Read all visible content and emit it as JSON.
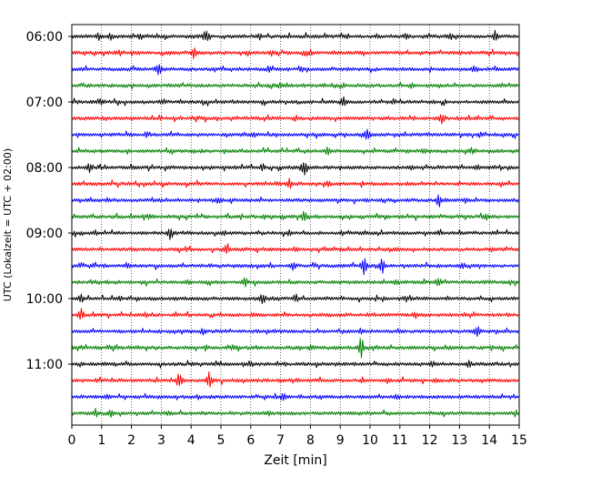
{
  "chart_data": {
    "type": "line",
    "title": "",
    "xlabel": "Zeit  [min]",
    "ylabel": "UTC (Lokalzeit = UTC + 02:00)",
    "xlim": [
      0,
      15
    ],
    "x_ticks": [
      "0",
      "1",
      "2",
      "3",
      "4",
      "5",
      "6",
      "7",
      "8",
      "9",
      "10",
      "11",
      "12",
      "13",
      "14",
      "15"
    ],
    "y_ticks": [
      {
        "label": "06:00",
        "trace": 0
      },
      {
        "label": "07:00",
        "trace": 4
      },
      {
        "label": "08:00",
        "trace": 8
      },
      {
        "label": "09:00",
        "trace": 12
      },
      {
        "label": "10:00",
        "trace": 16
      },
      {
        "label": "11:00",
        "trace": 20
      }
    ],
    "trace_start_times": [
      "06:00",
      "06:15",
      "06:30",
      "06:45",
      "07:00",
      "07:15",
      "07:30",
      "07:45",
      "08:00",
      "08:15",
      "08:30",
      "08:45",
      "09:00",
      "09:15",
      "09:30",
      "09:45",
      "10:00",
      "10:15",
      "10:30",
      "10:45",
      "11:00",
      "11:15",
      "11:30",
      "11:45"
    ],
    "colors": [
      "#000000",
      "#ff0000",
      "#0000ff",
      "#008000"
    ],
    "grid": "vertical dotted",
    "trace_count": 24,
    "events": [
      [
        [
          4.5,
          7
        ],
        [
          14.2,
          6
        ],
        [
          0.9,
          4
        ],
        [
          1.3,
          4
        ],
        [
          2.3,
          3
        ],
        [
          6.3,
          4
        ],
        [
          11.2,
          3
        ],
        [
          12.7,
          3
        ]
      ],
      [
        [
          4.1,
          6
        ],
        [
          1.5,
          3
        ],
        [
          6.7,
          3
        ],
        [
          8.0,
          3
        ]
      ],
      [
        [
          2.9,
          9
        ],
        [
          6.6,
          3
        ],
        [
          7.7,
          3
        ],
        [
          13.5,
          3
        ]
      ],
      [
        [
          7.0,
          3
        ],
        [
          11.4,
          3
        ]
      ],
      [
        [
          9.1,
          6
        ],
        [
          1.0,
          4
        ],
        [
          3.1,
          3
        ],
        [
          10.8,
          3
        ]
      ],
      [
        [
          12.4,
          7
        ],
        [
          7.5,
          3
        ]
      ],
      [
        [
          9.9,
          6
        ],
        [
          6.1,
          3
        ],
        [
          13.7,
          3
        ]
      ],
      [
        [
          8.6,
          5
        ],
        [
          11.8,
          3
        ],
        [
          13.4,
          3
        ]
      ],
      [
        [
          0.6,
          6
        ],
        [
          7.8,
          10
        ],
        [
          6.4,
          4
        ],
        [
          11.4,
          3
        ],
        [
          13.6,
          3
        ]
      ],
      [
        [
          7.3,
          6
        ],
        [
          8.6,
          3
        ],
        [
          14.4,
          3
        ]
      ],
      [
        [
          12.3,
          8
        ],
        [
          4.9,
          3
        ],
        [
          13.2,
          3
        ]
      ],
      [
        [
          7.8,
          6
        ],
        [
          2.6,
          3
        ],
        [
          13.9,
          3
        ]
      ],
      [
        [
          3.3,
          8
        ],
        [
          5.1,
          3
        ],
        [
          7.3,
          3
        ],
        [
          12.3,
          3
        ]
      ],
      [
        [
          5.2,
          7
        ],
        [
          7.5,
          3
        ],
        [
          14.1,
          3
        ]
      ],
      [
        [
          9.8,
          11
        ],
        [
          10.4,
          9
        ],
        [
          7.4,
          5
        ],
        [
          1.9,
          3
        ],
        [
          13.1,
          3
        ]
      ],
      [
        [
          5.8,
          6
        ],
        [
          12.3,
          6
        ],
        [
          3.9,
          3
        ],
        [
          10.9,
          3
        ]
      ],
      [
        [
          0.3,
          5
        ],
        [
          6.4,
          6
        ],
        [
          7.5,
          5
        ],
        [
          1.6,
          3
        ],
        [
          11.2,
          3
        ]
      ],
      [
        [
          0.3,
          8
        ],
        [
          11.5,
          4
        ],
        [
          2.5,
          3
        ],
        [
          6.1,
          3
        ]
      ],
      [
        [
          13.6,
          6
        ],
        [
          9.7,
          3
        ],
        [
          4.4,
          3
        ]
      ],
      [
        [
          9.7,
          12
        ],
        [
          8.0,
          3
        ],
        [
          5.4,
          3
        ],
        [
          12.7,
          3
        ]
      ],
      [
        [
          12.1,
          4
        ],
        [
          13.3,
          4
        ],
        [
          6.0,
          3
        ]
      ],
      [
        [
          3.6,
          9
        ],
        [
          4.6,
          9
        ],
        [
          10.6,
          3
        ],
        [
          12.2,
          3
        ]
      ],
      [
        [
          7.1,
          4
        ],
        [
          1.2,
          3
        ],
        [
          10.9,
          3
        ]
      ],
      [
        [
          0.8,
          5
        ],
        [
          1.3,
          4
        ],
        [
          3.2,
          3
        ],
        [
          6.6,
          3
        ]
      ]
    ]
  }
}
